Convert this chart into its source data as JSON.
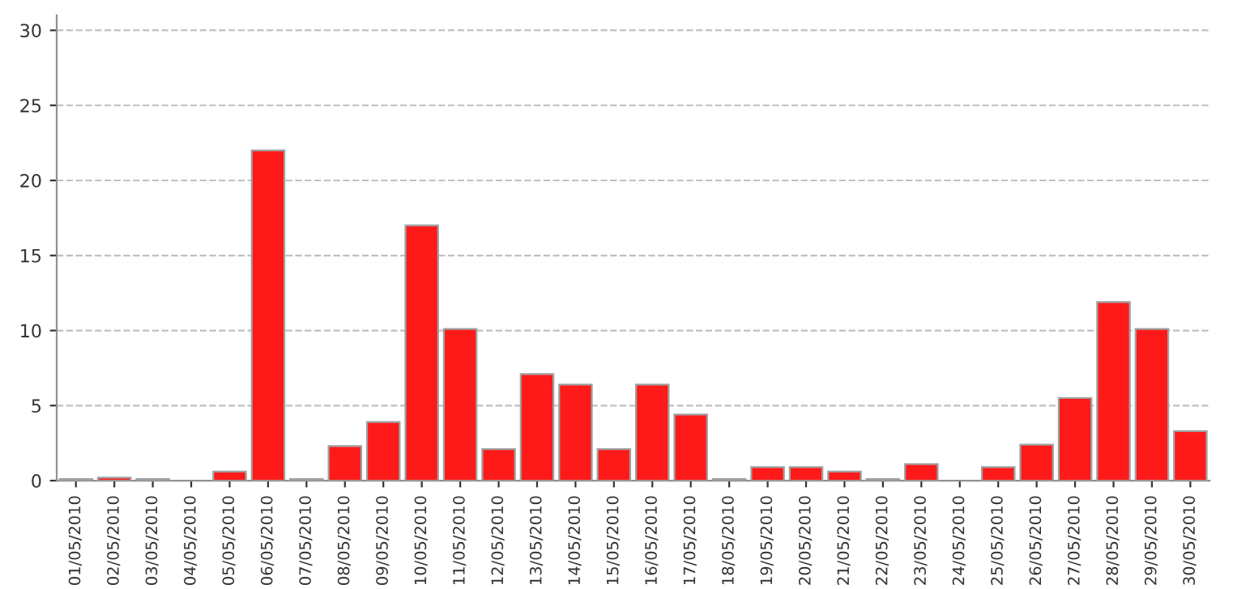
{
  "chart_data": {
    "type": "bar",
    "categories": [
      "01/05/2010",
      "02/05/2010",
      "03/05/2010",
      "04/05/2010",
      "05/05/2010",
      "06/05/2010",
      "07/05/2010",
      "08/05/2010",
      "09/05/2010",
      "10/05/2010",
      "11/05/2010",
      "12/05/2010",
      "13/05/2010",
      "14/05/2010",
      "15/05/2010",
      "16/05/2010",
      "17/05/2010",
      "18/05/2010",
      "19/05/2010",
      "20/05/2010",
      "21/05/2010",
      "22/05/2010",
      "23/05/2010",
      "24/05/2010",
      "25/05/2010",
      "26/05/2010",
      "27/05/2010",
      "28/05/2010",
      "29/05/2010",
      "30/05/2010"
    ],
    "values": [
      0.1,
      0.2,
      0.1,
      0,
      0.6,
      22,
      0.1,
      2.3,
      3.9,
      17,
      10.1,
      2.1,
      7.1,
      6.4,
      2.1,
      6.4,
      4.4,
      0.1,
      0.9,
      0.9,
      0.6,
      0.1,
      1.1,
      0,
      0.9,
      2.4,
      5.5,
      11.9,
      10.1,
      3.3
    ],
    "color": "#ff1a1a",
    "ylim": [
      0,
      31
    ],
    "yticks": [
      0,
      5,
      10,
      15,
      20,
      25,
      30
    ],
    "grid": "y"
  }
}
